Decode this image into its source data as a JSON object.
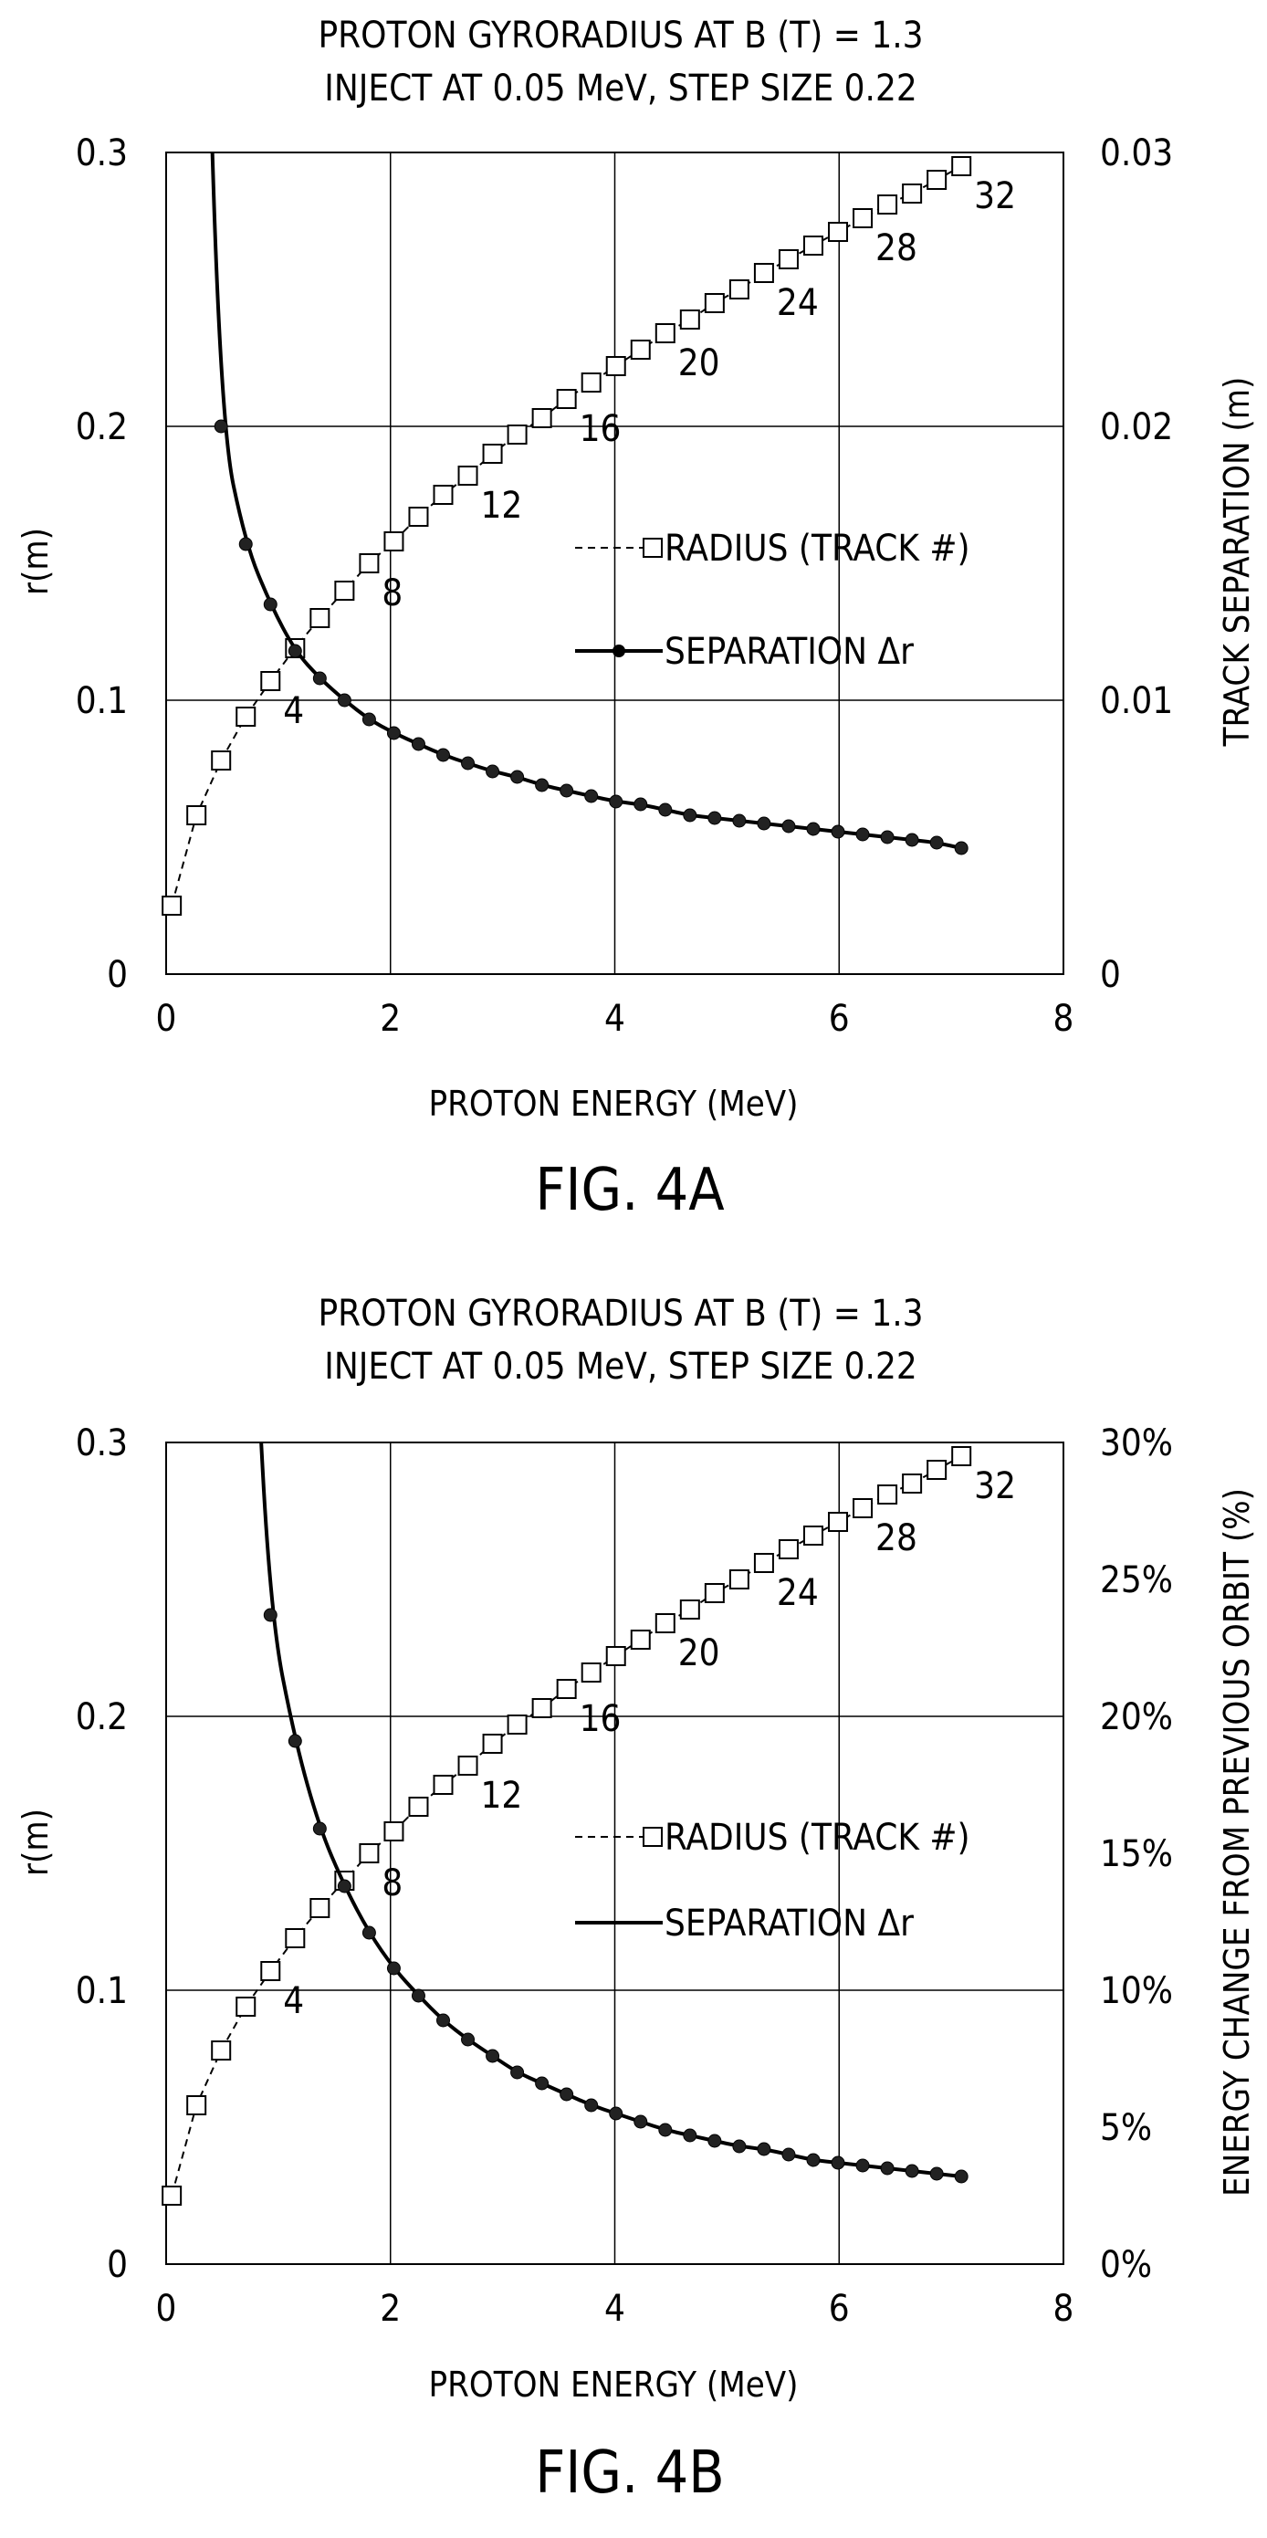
{
  "chart_data": [
    {
      "type": "line",
      "title": "PROTON GYRORADIUS AT B (T) = 1.3",
      "subtitle": "INJECT AT 0.05 MeV, STEP SIZE 0.22",
      "caption": "FIG. 4A",
      "xlabel": "PROTON ENERGY (MeV)",
      "ylabel": "r(m)",
      "y2label": "TRACK SEPARATION (m)",
      "xlim": [
        0,
        8
      ],
      "ylim": [
        0,
        0.3
      ],
      "y2lim": [
        0,
        0.03
      ],
      "xticks": [
        "0",
        "2",
        "4",
        "6",
        "8"
      ],
      "yticks": [
        "0",
        "0.1",
        "0.2",
        "0.3"
      ],
      "y2ticks": [
        "0",
        "0.01",
        "0.02",
        "0.03"
      ],
      "grid": true,
      "legend_position": "center",
      "legend": [
        "RADIUS (TRACK #)",
        "SEPARATION Δr"
      ],
      "track_labels": [
        {
          "text": "4",
          "track": 4
        },
        {
          "text": "8",
          "track": 8
        },
        {
          "text": "12",
          "track": 12
        },
        {
          "text": "16",
          "track": 16
        },
        {
          "text": "20",
          "track": 20
        },
        {
          "text": "24",
          "track": 24
        },
        {
          "text": "28",
          "track": 28
        },
        {
          "text": "32",
          "track": 32
        }
      ],
      "series": [
        {
          "name": "RADIUS (TRACK #)",
          "axis": "left",
          "x": [
            0.05,
            0.27,
            0.49,
            0.71,
            0.93,
            1.15,
            1.37,
            1.59,
            1.81,
            2.03,
            2.25,
            2.47,
            2.69,
            2.91,
            3.13,
            3.35,
            3.57,
            3.79,
            4.01,
            4.23,
            4.45,
            4.67,
            4.89,
            5.11,
            5.33,
            5.55,
            5.77,
            5.99,
            6.21,
            6.43,
            6.65,
            6.87,
            7.09
          ],
          "values": [
            0.025,
            0.058,
            0.078,
            0.094,
            0.107,
            0.119,
            0.13,
            0.14,
            0.15,
            0.158,
            0.167,
            0.175,
            0.182,
            0.19,
            0.197,
            0.203,
            0.21,
            0.216,
            0.222,
            0.228,
            0.234,
            0.239,
            0.245,
            0.25,
            0.256,
            0.261,
            0.266,
            0.271,
            0.276,
            0.281,
            0.285,
            0.29,
            0.295
          ]
        },
        {
          "name": "SEPARATION Δr",
          "axis": "right",
          "x": [
            0.49,
            0.71,
            0.93,
            1.15,
            1.37,
            1.59,
            1.81,
            2.03,
            2.25,
            2.47,
            2.69,
            2.91,
            3.13,
            3.35,
            3.57,
            3.79,
            4.01,
            4.23,
            4.45,
            4.67,
            4.89,
            5.11,
            5.33,
            5.55,
            5.77,
            5.99,
            6.21,
            6.43,
            6.65,
            6.87,
            7.09
          ],
          "values": [
            0.02,
            0.0157,
            0.0135,
            0.0118,
            0.0108,
            0.01,
            0.0093,
            0.0088,
            0.0084,
            0.008,
            0.0077,
            0.0074,
            0.0072,
            0.0069,
            0.0067,
            0.0065,
            0.0063,
            0.0062,
            0.006,
            0.0058,
            0.0057,
            0.0056,
            0.0055,
            0.0054,
            0.0053,
            0.0052,
            0.0051,
            0.005,
            0.0049,
            0.0048,
            0.0046
          ]
        }
      ]
    },
    {
      "type": "line",
      "title": "PROTON GYRORADIUS AT B (T) = 1.3",
      "subtitle": "INJECT AT 0.05 MeV, STEP SIZE 0.22",
      "caption": "FIG. 4B",
      "xlabel": "PROTON ENERGY (MeV)",
      "ylabel": "r(m)",
      "y2label": "ENERGY CHANGE FROM PREVIOUS ORBIT (%)",
      "xlim": [
        0,
        8
      ],
      "ylim": [
        0,
        0.3
      ],
      "y2lim": [
        0,
        30
      ],
      "xticks": [
        "0",
        "2",
        "4",
        "6",
        "8"
      ],
      "yticks": [
        "0",
        "0.1",
        "0.2",
        "0.3"
      ],
      "y2ticks": [
        "0%",
        "5%",
        "10%",
        "15%",
        "20%",
        "25%",
        "30%"
      ],
      "grid": true,
      "legend_position": "center",
      "legend": [
        "RADIUS (TRACK #)",
        "SEPARATION Δr"
      ],
      "track_labels": [
        {
          "text": "4",
          "track": 4
        },
        {
          "text": "8",
          "track": 8
        },
        {
          "text": "12",
          "track": 12
        },
        {
          "text": "16",
          "track": 16
        },
        {
          "text": "20",
          "track": 20
        },
        {
          "text": "24",
          "track": 24
        },
        {
          "text": "28",
          "track": 28
        },
        {
          "text": "32",
          "track": 32
        }
      ],
      "series": [
        {
          "name": "RADIUS (TRACK #)",
          "axis": "left",
          "x": [
            0.05,
            0.27,
            0.49,
            0.71,
            0.93,
            1.15,
            1.37,
            1.59,
            1.81,
            2.03,
            2.25,
            2.47,
            2.69,
            2.91,
            3.13,
            3.35,
            3.57,
            3.79,
            4.01,
            4.23,
            4.45,
            4.67,
            4.89,
            5.11,
            5.33,
            5.55,
            5.77,
            5.99,
            6.21,
            6.43,
            6.65,
            6.87,
            7.09
          ],
          "values": [
            0.025,
            0.058,
            0.078,
            0.094,
            0.107,
            0.119,
            0.13,
            0.14,
            0.15,
            0.158,
            0.167,
            0.175,
            0.182,
            0.19,
            0.197,
            0.203,
            0.21,
            0.216,
            0.222,
            0.228,
            0.234,
            0.239,
            0.245,
            0.25,
            0.256,
            0.261,
            0.266,
            0.271,
            0.276,
            0.281,
            0.285,
            0.29,
            0.295
          ]
        },
        {
          "name": "SEPARATION Δr",
          "axis": "right",
          "x": [
            0.93,
            1.15,
            1.37,
            1.59,
            1.81,
            2.03,
            2.25,
            2.47,
            2.69,
            2.91,
            3.13,
            3.35,
            3.57,
            3.79,
            4.01,
            4.23,
            4.45,
            4.67,
            4.89,
            5.11,
            5.33,
            5.55,
            5.77,
            5.99,
            6.21,
            6.43,
            6.65,
            6.87,
            7.09
          ],
          "values": [
            23.7,
            19.1,
            15.9,
            13.8,
            12.1,
            10.8,
            9.8,
            8.9,
            8.2,
            7.6,
            7.0,
            6.6,
            6.2,
            5.8,
            5.5,
            5.2,
            4.9,
            4.7,
            4.5,
            4.3,
            4.2,
            4.0,
            3.8,
            3.7,
            3.6,
            3.5,
            3.4,
            3.3,
            3.2
          ]
        }
      ]
    }
  ]
}
